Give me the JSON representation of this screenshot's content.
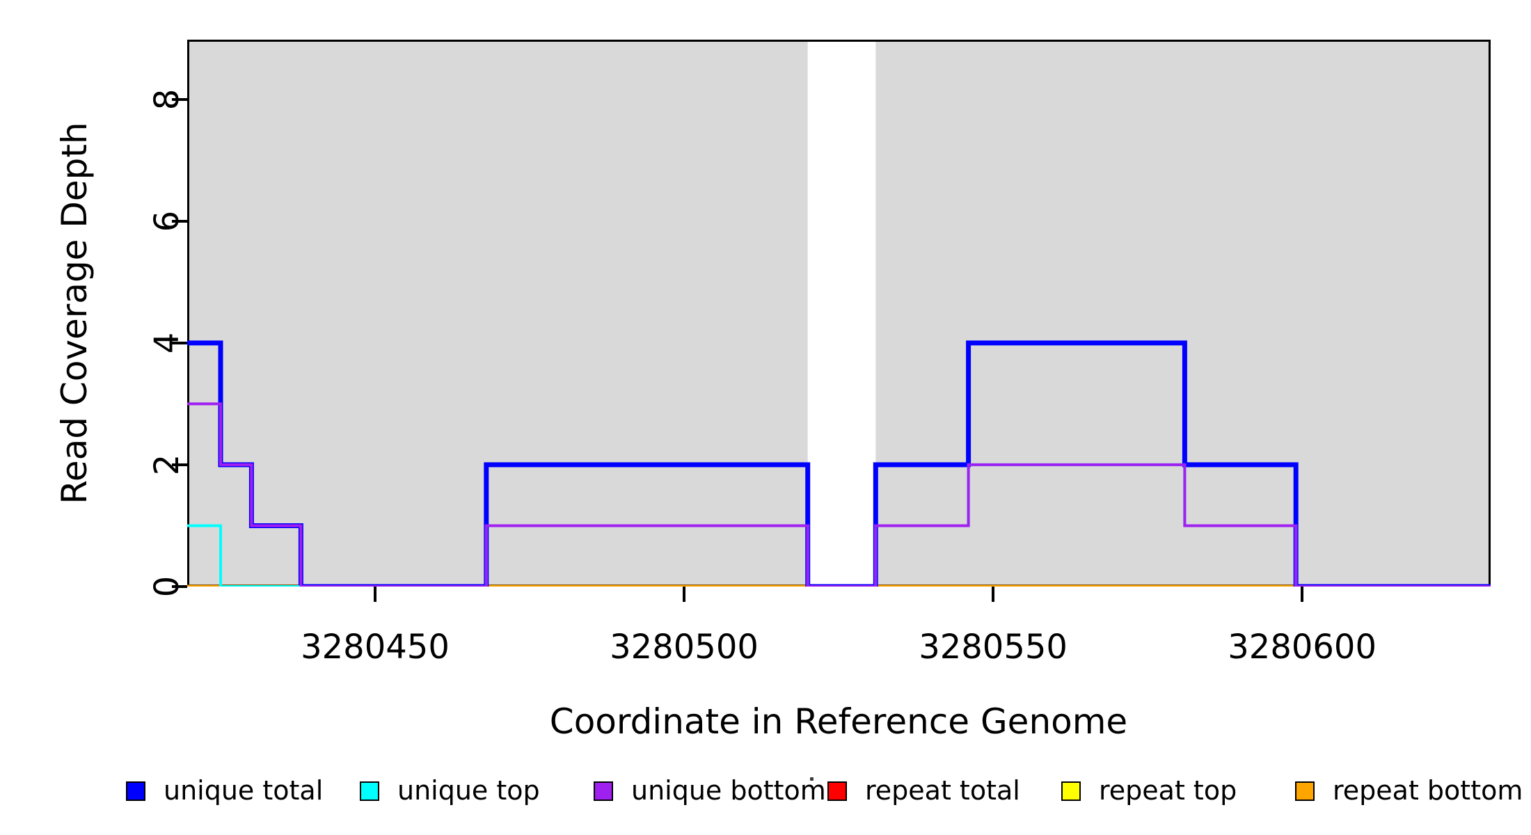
{
  "chart_data": {
    "type": "line",
    "subtype": "step-coverage-plot",
    "title": "",
    "xlabel": "Coordinate in Reference Genome",
    "ylabel": "Read Coverage Depth",
    "xlim": [
      3280419.6,
      3280630.5
    ],
    "ylim": [
      0,
      8.98
    ],
    "grid": false,
    "x_ticks": [
      3280450,
      3280500,
      3280550,
      3280600
    ],
    "y_ticks": [
      0,
      2,
      4,
      6,
      8
    ],
    "shading": {
      "color": "#d9d9d9",
      "regions": [
        {
          "from": 3280419.6,
          "to": 3280520
        },
        {
          "from": 3280531,
          "to": 3280630.5
        }
      ]
    },
    "series": [
      {
        "name": "unique total",
        "color": "#0000ff",
        "lwd": 7,
        "draw_order": 4,
        "steps": [
          {
            "from": 3280419.6,
            "to": 3280425,
            "value": 4
          },
          {
            "from": 3280425,
            "to": 3280430,
            "value": 2
          },
          {
            "from": 3280430,
            "to": 3280438,
            "value": 1
          },
          {
            "from": 3280438,
            "to": 3280468,
            "value": 0
          },
          {
            "from": 3280468,
            "to": 3280520,
            "value": 2
          },
          {
            "from": 3280520,
            "to": 3280531,
            "value": 0
          },
          {
            "from": 3280531,
            "to": 3280546,
            "value": 2
          },
          {
            "from": 3280546,
            "to": 3280581,
            "value": 4
          },
          {
            "from": 3280581,
            "to": 3280599,
            "value": 2
          },
          {
            "from": 3280599,
            "to": 3280630.5,
            "value": 0
          }
        ]
      },
      {
        "name": "unique top",
        "color": "#00ffff",
        "lwd": 4,
        "draw_order": 5,
        "steps": [
          {
            "from": 3280419.6,
            "to": 3280425,
            "value": 1
          },
          {
            "from": 3280425,
            "to": 3280468,
            "value": 0
          },
          {
            "from": 3280468,
            "to": 3280520,
            "value": 1
          },
          {
            "from": 3280520,
            "to": 3280531,
            "value": 0
          },
          {
            "from": 3280531,
            "to": 3280546,
            "value": 1
          },
          {
            "from": 3280546,
            "to": 3280581,
            "value": 2
          },
          {
            "from": 3280581,
            "to": 3280599,
            "value": 1
          },
          {
            "from": 3280599,
            "to": 3280630.5,
            "value": 0
          }
        ]
      },
      {
        "name": "unique bottom",
        "color": "#a020f0",
        "lwd": 4,
        "draw_order": 6,
        "steps": [
          {
            "from": 3280419.6,
            "to": 3280425,
            "value": 3
          },
          {
            "from": 3280425,
            "to": 3280430,
            "value": 2
          },
          {
            "from": 3280430,
            "to": 3280438,
            "value": 1
          },
          {
            "from": 3280438,
            "to": 3280468,
            "value": 0
          },
          {
            "from": 3280468,
            "to": 3280520,
            "value": 1
          },
          {
            "from": 3280520,
            "to": 3280531,
            "value": 0
          },
          {
            "from": 3280531,
            "to": 3280546,
            "value": 1
          },
          {
            "from": 3280546,
            "to": 3280581,
            "value": 2
          },
          {
            "from": 3280581,
            "to": 3280599,
            "value": 1
          },
          {
            "from": 3280599,
            "to": 3280630.5,
            "value": 0
          }
        ]
      },
      {
        "name": "repeat total",
        "color": "#ff0000",
        "lwd": 5,
        "draw_order": 1,
        "steps": [
          {
            "from": 3280419.6,
            "to": 3280630.5,
            "value": 0
          }
        ]
      },
      {
        "name": "repeat top",
        "color": "#ffff00",
        "lwd": 5,
        "draw_order": 2,
        "steps": [
          {
            "from": 3280419.6,
            "to": 3280630.5,
            "value": 0
          }
        ]
      },
      {
        "name": "repeat bottom",
        "color": "#ffa500",
        "lwd": 5,
        "draw_order": 3,
        "steps": [
          {
            "from": 3280419.6,
            "to": 3280630.5,
            "value": 0
          }
        ]
      }
    ],
    "legend": {
      "position": "bottom",
      "entries": [
        {
          "label": "unique total",
          "color": "#0000ff"
        },
        {
          "label": "unique top",
          "color": "#00ffff"
        },
        {
          "label": "unique bottom",
          "color": "#a020f0"
        },
        {
          "label": "repeat total",
          "color": "#ff0000"
        },
        {
          "label": "repeat top",
          "color": "#ffff00"
        },
        {
          "label": "repeat bottom",
          "color": "#ffa500"
        }
      ]
    }
  }
}
